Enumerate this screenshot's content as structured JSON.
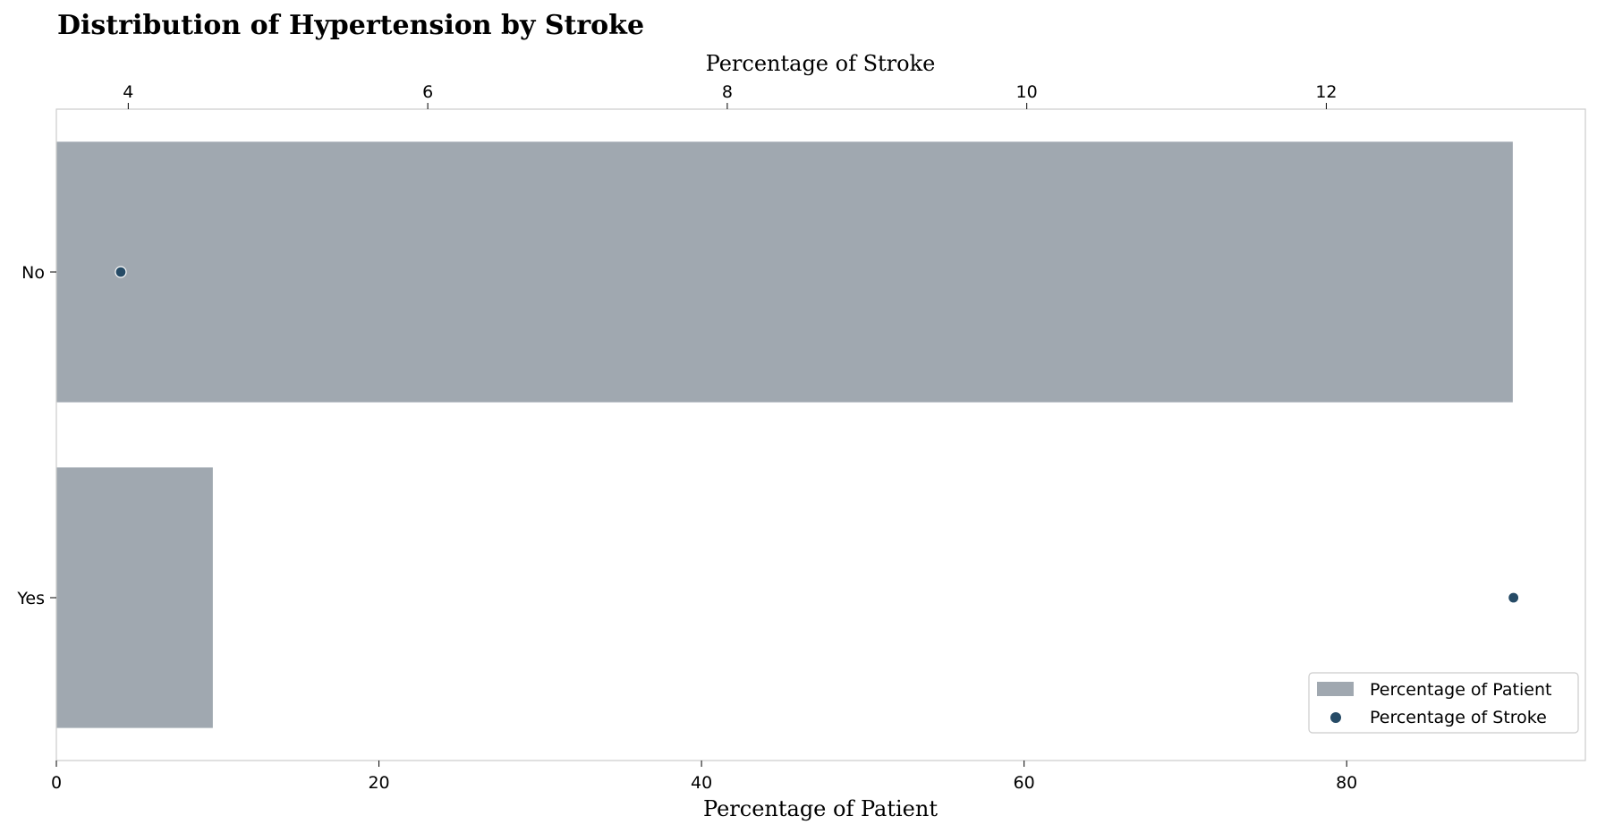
{
  "chart_data": {
    "type": "bar",
    "title": "Distribution of Hypertension by Stroke",
    "orientation": "horizontal",
    "categories": [
      "No",
      "Yes"
    ],
    "series": [
      {
        "name": "Percentage of Patient",
        "type": "bar",
        "axis": "bottom",
        "values": [
          90.3,
          9.7
        ],
        "color": "#a0a8b0"
      },
      {
        "name": "Percentage of Stroke",
        "type": "scatter",
        "axis": "top",
        "values": [
          3.95,
          13.25
        ],
        "color": "#264b66"
      }
    ],
    "xlabel_bottom": "Percentage of Patient",
    "xlabel_top": "Percentage of Stroke",
    "xlim_bottom": [
      0,
      94.8
    ],
    "xlim_top": [
      3.52,
      13.73
    ],
    "xticks_bottom": [
      "0",
      "20",
      "40",
      "60",
      "80"
    ],
    "xticks_bottom_values": [
      0,
      20,
      40,
      60,
      80
    ],
    "xticks_top": [
      "4",
      "6",
      "8",
      "10",
      "12"
    ],
    "xticks_top_values": [
      4,
      6,
      8,
      10,
      12
    ],
    "grid": false,
    "legend_position": "bottom-right"
  }
}
